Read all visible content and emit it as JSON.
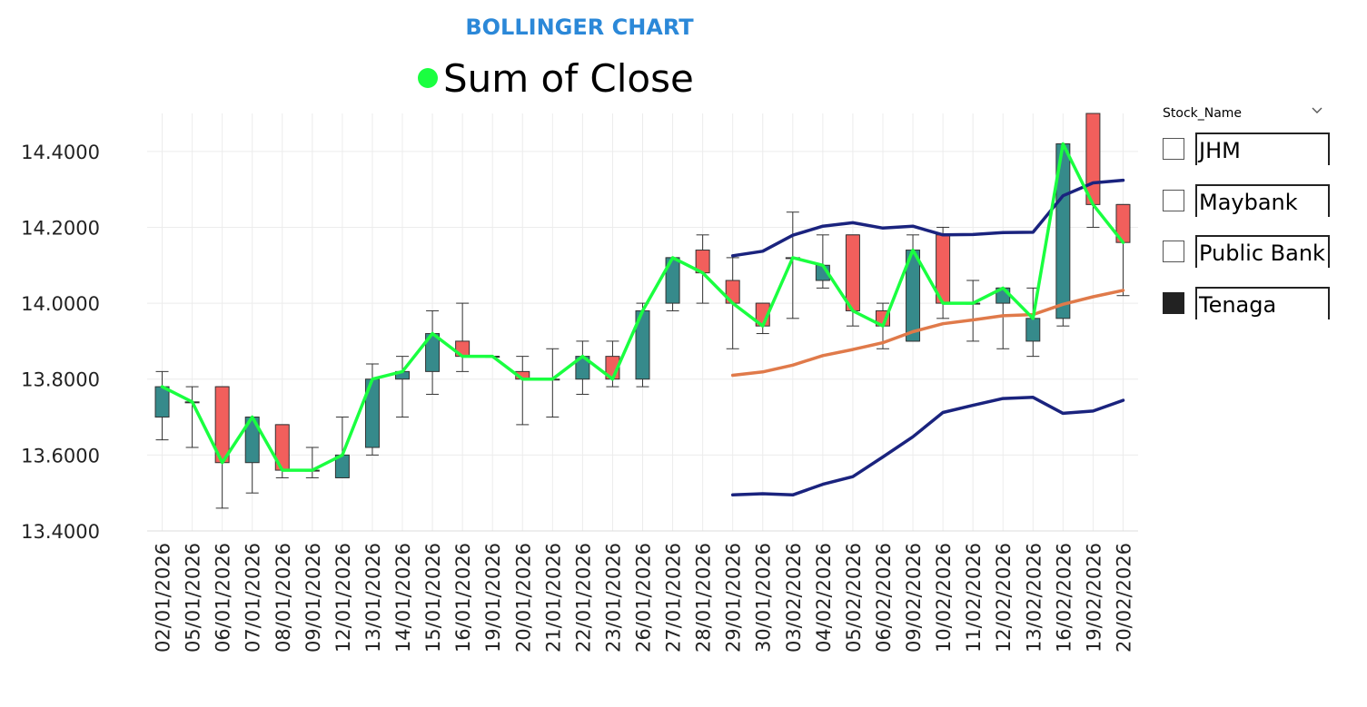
{
  "header": {
    "title": "BOLLINGER CHART"
  },
  "legend": {
    "label": "Sum of Close",
    "color": "#1aff40"
  },
  "slicer": {
    "title": "Stock_Name",
    "items": [
      {
        "label": "JHM",
        "checked": false
      },
      {
        "label": "Maybank",
        "checked": false
      },
      {
        "label": "Public Bank",
        "checked": false
      },
      {
        "label": "Tenaga",
        "checked": true
      }
    ]
  },
  "chart_data": {
    "type": "candlestick",
    "ylim": [
      13.4,
      14.5
    ],
    "yticks": [
      13.4,
      13.6,
      13.8,
      14.0,
      14.2,
      14.4
    ],
    "ytick_labels": [
      "13.4000",
      "13.6000",
      "13.8000",
      "14.0000",
      "14.2000",
      "14.4000"
    ],
    "grid": true,
    "colors": {
      "up": "#368a8b",
      "down": "#f25f5c",
      "close_line": "#1aff40",
      "band": "#1a237e",
      "middle": "#e07a4a",
      "grid": "#ececec"
    },
    "dates": [
      "02/01/2026",
      "05/01/2026",
      "06/01/2026",
      "07/01/2026",
      "08/01/2026",
      "09/01/2026",
      "12/01/2026",
      "13/01/2026",
      "14/01/2026",
      "15/01/2026",
      "16/01/2026",
      "19/01/2026",
      "20/01/2026",
      "21/01/2026",
      "22/01/2026",
      "23/01/2026",
      "26/01/2026",
      "27/01/2026",
      "28/01/2026",
      "29/01/2026",
      "30/01/2026",
      "03/02/2026",
      "04/02/2026",
      "05/02/2026",
      "06/02/2026",
      "09/02/2026",
      "10/02/2026",
      "11/02/2026",
      "12/02/2026",
      "13/02/2026",
      "16/02/2026",
      "19/02/2026",
      "20/02/2026"
    ],
    "open": [
      13.7,
      13.74,
      13.78,
      13.58,
      13.68,
      13.56,
      13.54,
      13.62,
      13.8,
      13.82,
      13.9,
      13.86,
      13.82,
      13.8,
      13.8,
      13.86,
      13.8,
      14.0,
      14.14,
      14.06,
      14.0,
      14.12,
      14.06,
      14.18,
      13.98,
      13.9,
      14.18,
      14.0,
      14.0,
      13.9,
      13.96,
      14.5,
      14.26
    ],
    "high": [
      13.82,
      13.78,
      13.78,
      13.7,
      13.68,
      13.62,
      13.7,
      13.84,
      13.86,
      13.98,
      14.0,
      13.86,
      13.86,
      13.88,
      13.9,
      13.9,
      14.0,
      14.12,
      14.18,
      14.12,
      14.0,
      14.24,
      14.18,
      14.18,
      14.0,
      14.18,
      14.2,
      14.06,
      14.04,
      14.04,
      14.42,
      14.5,
      14.26
    ],
    "low": [
      13.64,
      13.62,
      13.46,
      13.5,
      13.54,
      13.54,
      13.54,
      13.6,
      13.7,
      13.76,
      13.82,
      13.86,
      13.68,
      13.7,
      13.76,
      13.78,
      13.78,
      13.98,
      14.0,
      13.88,
      13.92,
      13.96,
      14.04,
      13.94,
      13.88,
      13.9,
      13.96,
      13.9,
      13.88,
      13.86,
      13.94,
      14.2,
      14.02
    ],
    "close": [
      13.78,
      13.74,
      13.58,
      13.7,
      13.56,
      13.56,
      13.6,
      13.8,
      13.82,
      13.92,
      13.86,
      13.86,
      13.8,
      13.8,
      13.86,
      13.8,
      13.98,
      14.12,
      14.08,
      14.0,
      13.94,
      14.12,
      14.1,
      13.98,
      13.94,
      14.14,
      14.0,
      14.0,
      14.04,
      13.96,
      14.42,
      14.26,
      14.16
    ],
    "upper_band": [
      null,
      null,
      null,
      null,
      null,
      null,
      null,
      null,
      null,
      null,
      null,
      null,
      null,
      null,
      null,
      null,
      null,
      null,
      null,
      14.125,
      14.137,
      14.179,
      14.203,
      14.212,
      14.198,
      14.203,
      14.18,
      14.181,
      14.186,
      14.187,
      14.283,
      14.317,
      14.324
    ],
    "middle_band": [
      null,
      null,
      null,
      null,
      null,
      null,
      null,
      null,
      null,
      null,
      null,
      null,
      null,
      null,
      null,
      null,
      null,
      null,
      null,
      13.81,
      13.819,
      13.837,
      13.862,
      13.878,
      13.896,
      13.925,
      13.946,
      13.956,
      13.967,
      13.97,
      13.997,
      14.017,
      14.034
    ],
    "lower_band": [
      null,
      null,
      null,
      null,
      null,
      null,
      null,
      null,
      null,
      null,
      null,
      null,
      null,
      null,
      null,
      null,
      null,
      null,
      null,
      13.495,
      13.498,
      13.495,
      13.523,
      13.543,
      13.595,
      13.648,
      13.712,
      13.731,
      13.749,
      13.752,
      13.71,
      13.716,
      13.744
    ]
  }
}
